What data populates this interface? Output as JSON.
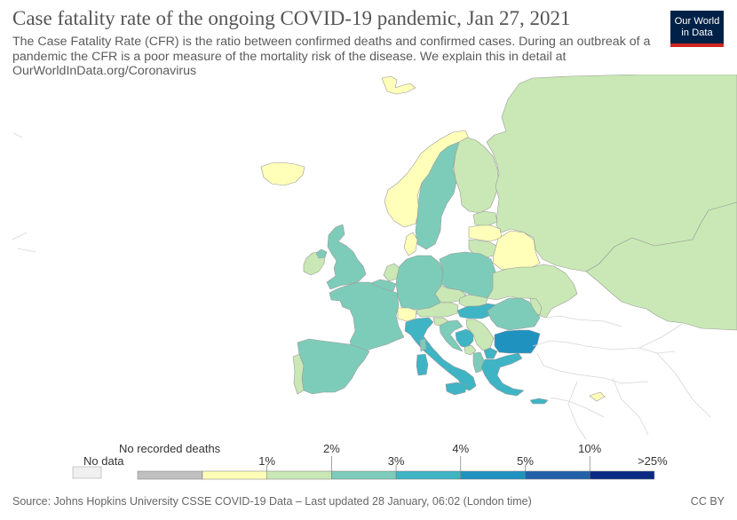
{
  "header": {
    "title": "Case fatality rate of the ongoing COVID-19 pandemic, Jan 27, 2021",
    "subtitle_lines": [
      "The Case Fatality Rate (CFR) is the ratio between confirmed deaths and confirmed cases. During an outbreak of a",
      "pandemic the CFR is a poor measure of the mortality risk of the disease. We explain this in detail at",
      "OurWorldInData.org/Coronavirus"
    ]
  },
  "logo": {
    "line1": "Our World",
    "line2": "in Data",
    "background": "#002147",
    "accent": "#ce261e"
  },
  "legend": {
    "no_data_label": "No data",
    "no_data_color": "#f0f0f0",
    "no_deaths_label": "No recorded deaths",
    "no_deaths_color": "#c0c0c0",
    "bins": [
      {
        "color": "#ffffb9",
        "upper_label": "1%"
      },
      {
        "color": "#c9e8b5",
        "upper_label": "2%"
      },
      {
        "color": "#7dccb9",
        "upper_label": "3%"
      },
      {
        "color": "#3fb4c4",
        "upper_label": "4%"
      },
      {
        "color": "#1f92c0",
        "upper_label": "5%"
      },
      {
        "color": "#2260a8",
        "upper_label": "10%"
      },
      {
        "color": "#0c2a84",
        "upper_label": ">25%"
      }
    ]
  },
  "map": {
    "ocean": "#ffffff",
    "outside_region_color": "#ffffff",
    "border_color": "#9a9a9a",
    "regions": [
      {
        "name": "Iceland",
        "bin": 0
      },
      {
        "name": "Svalbard",
        "bin": 0
      },
      {
        "name": "Norway",
        "bin": 0
      },
      {
        "name": "Sweden",
        "bin": 2
      },
      {
        "name": "Finland",
        "bin": 1
      },
      {
        "name": "Russia",
        "bin": 1
      },
      {
        "name": "Estonia",
        "bin": 1
      },
      {
        "name": "Latvia",
        "bin": 0
      },
      {
        "name": "Lithuania",
        "bin": 1
      },
      {
        "name": "Belarus",
        "bin": 0
      },
      {
        "name": "Denmark",
        "bin": 0
      },
      {
        "name": "Ireland",
        "bin": 1
      },
      {
        "name": "United Kingdom",
        "bin": 2
      },
      {
        "name": "Netherlands",
        "bin": 1
      },
      {
        "name": "Belgium",
        "bin": 2
      },
      {
        "name": "France",
        "bin": 2
      },
      {
        "name": "Germany",
        "bin": 2
      },
      {
        "name": "Poland",
        "bin": 2
      },
      {
        "name": "Czechia",
        "bin": 1
      },
      {
        "name": "Slovakia",
        "bin": 1
      },
      {
        "name": "Austria",
        "bin": 1
      },
      {
        "name": "Switzerland",
        "bin": 0
      },
      {
        "name": "Hungary",
        "bin": 3
      },
      {
        "name": "Ukraine",
        "bin": 1
      },
      {
        "name": "Moldova",
        "bin": 1
      },
      {
        "name": "Romania",
        "bin": 2
      },
      {
        "name": "Slovenia",
        "bin": 1
      },
      {
        "name": "Croatia",
        "bin": 2
      },
      {
        "name": "Bosnia and Herzegovina",
        "bin": 3
      },
      {
        "name": "Serbia",
        "bin": 1
      },
      {
        "name": "Montenegro",
        "bin": 1
      },
      {
        "name": "North Macedonia",
        "bin": 3
      },
      {
        "name": "Albania",
        "bin": 2
      },
      {
        "name": "Bulgaria",
        "bin": 4
      },
      {
        "name": "Greece",
        "bin": 3
      },
      {
        "name": "Italy",
        "bin": 3
      },
      {
        "name": "Sicily",
        "bin": 3
      },
      {
        "name": "Sardinia",
        "bin": 3
      },
      {
        "name": "Corsica",
        "bin": 2
      },
      {
        "name": "Spain",
        "bin": 2
      },
      {
        "name": "Portugal",
        "bin": 1
      },
      {
        "name": "Crete",
        "bin": 3
      },
      {
        "name": "Cyprus",
        "bin": 0
      },
      {
        "name": "Kazakhstan",
        "bin": 1
      }
    ]
  },
  "footer": {
    "source": "Source: Johns Hopkins University CSSE COVID-19 Data – Last updated 28 January, 06:02 (London time)",
    "license": "CC BY"
  }
}
